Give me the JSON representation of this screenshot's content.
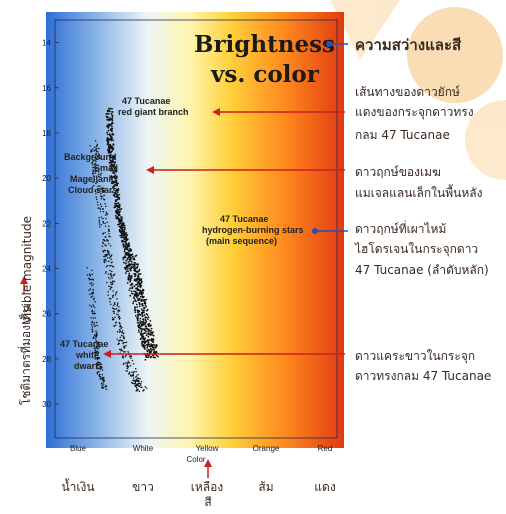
{
  "colors": {
    "arrow_red": "#cc1f1f",
    "arrow_blue": "#2a4fb5",
    "gradient": [
      "#2f6fd6",
      "#8fb8e8",
      "#e8f0f4",
      "#fff6b0",
      "#ffd03a",
      "#ff8a1e",
      "#e23a12"
    ],
    "points": "#111111",
    "background_deco": "#f6a63a"
  },
  "chart_data": {
    "type": "scatter",
    "title": "Brightness vs. color",
    "title_lines": [
      "Brightness",
      "vs. color"
    ],
    "ylabel": "Visible magnitude",
    "xlabel": "Color",
    "y_inverted": true,
    "ylim": [
      13,
      31.5
    ],
    "yticks": [
      14,
      16,
      18,
      20,
      22,
      24,
      26,
      28,
      30
    ],
    "x_categories": [
      "Blue",
      "White",
      "Yellow",
      "Orange",
      "Red"
    ],
    "groups": [
      {
        "name": "47 Tucanae red giant branch / main sequence",
        "path": [
          [
            0.48,
            17.0
          ],
          [
            0.5,
            18.5
          ],
          [
            0.56,
            20.0
          ],
          [
            0.62,
            21.5
          ],
          [
            0.7,
            22.5
          ],
          [
            0.78,
            23.4
          ],
          [
            0.86,
            24.3
          ],
          [
            0.92,
            25.2
          ],
          [
            1.0,
            26.2
          ],
          [
            1.08,
            27.2
          ],
          [
            1.15,
            28.0
          ]
        ]
      },
      {
        "name": "Background Small Magellanic Cloud stars",
        "path": [
          [
            0.25,
            18.5
          ],
          [
            0.3,
            20.0
          ],
          [
            0.4,
            22.0
          ],
          [
            0.48,
            24.0
          ],
          [
            0.58,
            26.0
          ],
          [
            0.7,
            27.5
          ],
          [
            0.86,
            28.8
          ],
          [
            1.0,
            29.4
          ]
        ]
      },
      {
        "name": "47 Tucanae white dwarfs",
        "path": [
          [
            0.18,
            24.0
          ],
          [
            0.22,
            25.5
          ],
          [
            0.26,
            26.8
          ],
          [
            0.3,
            27.8
          ],
          [
            0.34,
            28.6
          ],
          [
            0.4,
            29.2
          ]
        ]
      }
    ],
    "annotations": [
      {
        "lines": [
          "Brightness",
          "vs. color"
        ]
      },
      {
        "lines": [
          "47 Tucanae",
          "red giant branch"
        ]
      },
      {
        "lines": [
          "Background",
          "Small",
          "Magellanic",
          "Cloud stars"
        ]
      },
      {
        "lines": [
          "47 Tucanae",
          "hydrogen-burning stars",
          "(main sequence)"
        ]
      },
      {
        "lines": [
          "47 Tucanae",
          "white",
          "dwarfs"
        ]
      }
    ]
  },
  "thai": {
    "title": "ความสว่างและสี",
    "red_giant": [
      "เส้นทางของดาวยักษ์",
      "แดงของกระจุกดาวทรง",
      "กลม 47 Tucanae"
    ],
    "smc": [
      "ดาวฤกษ์ของเมฆ",
      "แมเจลแลนเล็กในพื้นหลัง"
    ],
    "main_seq": [
      "ดาวฤกษ์ที่เผาไหม้",
      "ไฮโดรเจนในกระจุกดาว",
      "47 Tucanae  (ลำดับหลัก)"
    ],
    "white_dwarf": [
      "ดาวแคระขาวในกระจุก",
      "ดาวทรงกลม 47 Tucanae"
    ],
    "y_axis": "โชติมาตรที่มองเห็น",
    "x_colors": [
      "น้ำเงิน",
      "ขาว",
      "เหลือง",
      "ส้ม",
      "แดง"
    ],
    "x_axis": "สี"
  }
}
